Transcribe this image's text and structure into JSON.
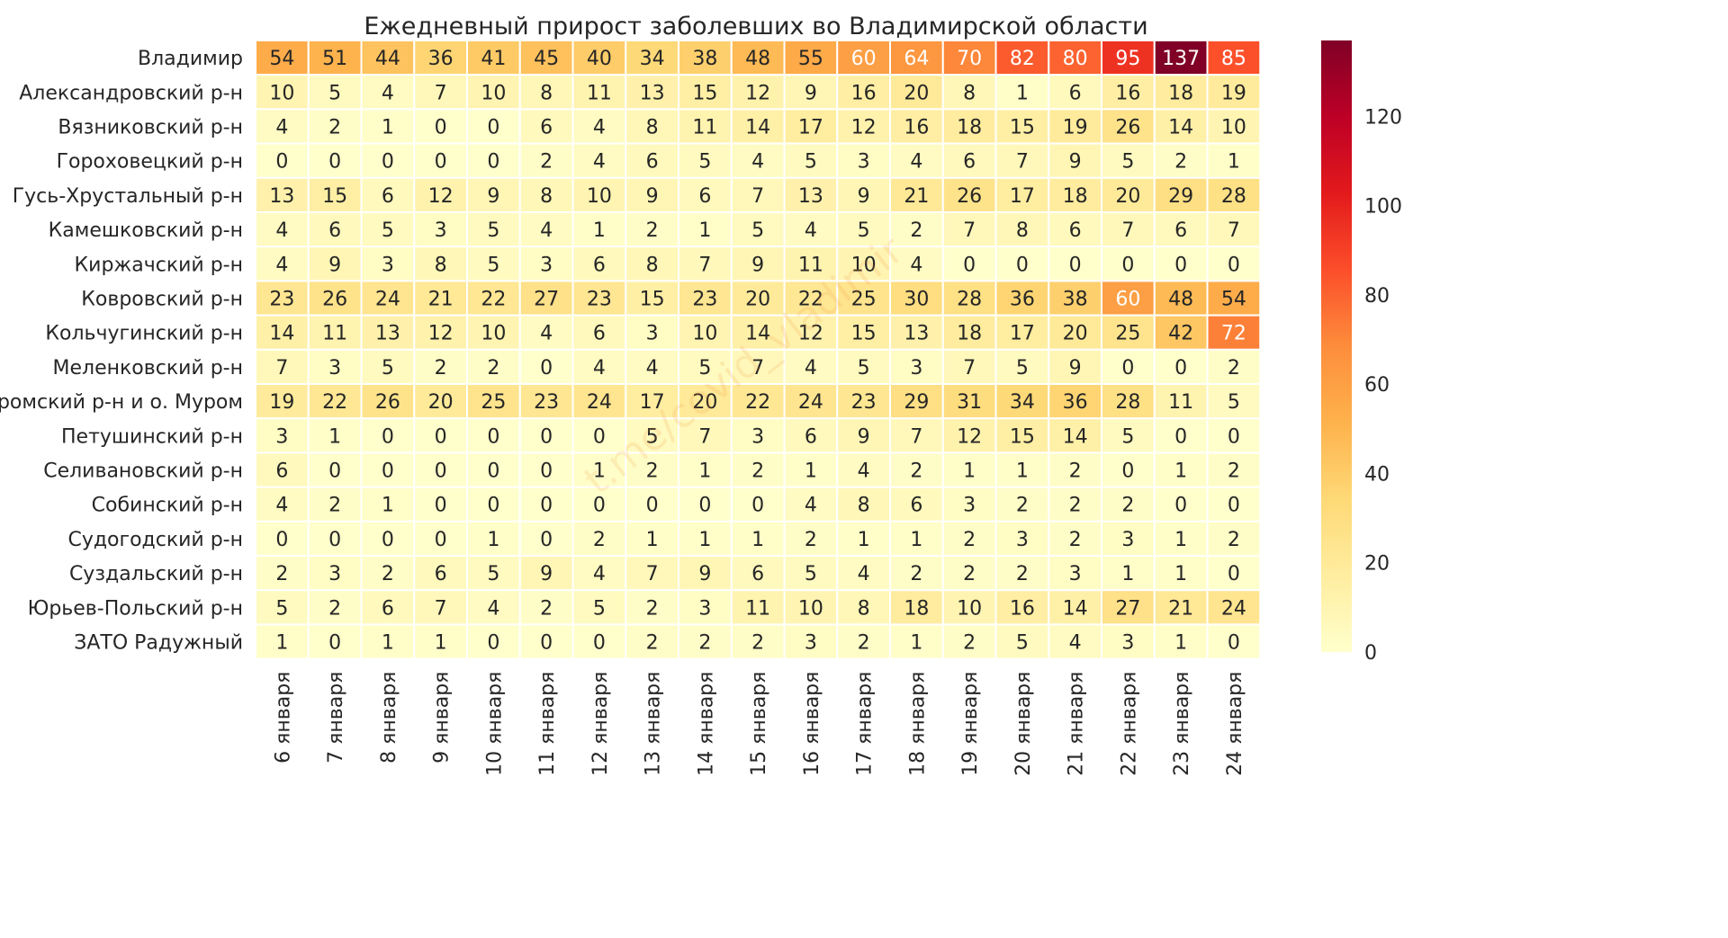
{
  "chart_data": {
    "type": "heatmap",
    "title": "Ежедневный прирост заболевших во Владимирской области",
    "xlabel": "",
    "ylabel": "",
    "columns": [
      "6 января",
      "7 января",
      "8 января",
      "9 января",
      "10 января",
      "11 января",
      "12 января",
      "13 января",
      "14 января",
      "15 января",
      "16 января",
      "17 января",
      "18 января",
      "19 января",
      "20 января",
      "21 января",
      "22 января",
      "23 января",
      "24 января"
    ],
    "rows": [
      "Владимир",
      "Александровский р-н",
      "Вязниковский р-н",
      "Гороховецкий р-н",
      "Гусь-Хрустальный р-н",
      "Камешковский р-н",
      "Киржачский р-н",
      "Ковровский р-н",
      "Кольчугинский р-н",
      "Меленковский р-н",
      "Муромский р-н и о. Муром",
      "Петушинский р-н",
      "Селивановский р-н",
      "Собинский р-н",
      "Судогодский р-н",
      "Суздальский р-н",
      "Юрьев-Польский р-н",
      "ЗАТО Радужный"
    ],
    "values": [
      [
        54,
        51,
        44,
        36,
        41,
        45,
        40,
        34,
        38,
        48,
        55,
        60,
        64,
        70,
        82,
        80,
        95,
        137,
        85
      ],
      [
        10,
        5,
        4,
        7,
        10,
        8,
        11,
        13,
        15,
        12,
        9,
        16,
        20,
        8,
        1,
        6,
        16,
        18,
        19
      ],
      [
        4,
        2,
        1,
        0,
        0,
        6,
        4,
        8,
        11,
        14,
        17,
        12,
        16,
        18,
        15,
        19,
        26,
        14,
        10
      ],
      [
        0,
        0,
        0,
        0,
        0,
        2,
        4,
        6,
        5,
        4,
        5,
        3,
        4,
        6,
        7,
        9,
        5,
        2,
        1
      ],
      [
        13,
        15,
        6,
        12,
        9,
        8,
        10,
        9,
        6,
        7,
        13,
        9,
        21,
        26,
        17,
        18,
        20,
        29,
        28
      ],
      [
        4,
        6,
        5,
        3,
        5,
        4,
        1,
        2,
        1,
        5,
        4,
        5,
        2,
        7,
        8,
        6,
        7,
        6,
        7
      ],
      [
        4,
        9,
        3,
        8,
        5,
        3,
        6,
        8,
        7,
        9,
        11,
        10,
        4,
        0,
        0,
        0,
        0,
        0,
        0
      ],
      [
        23,
        26,
        24,
        21,
        22,
        27,
        23,
        15,
        23,
        20,
        22,
        25,
        30,
        28,
        36,
        38,
        60,
        48,
        54
      ],
      [
        14,
        11,
        13,
        12,
        10,
        4,
        6,
        3,
        10,
        14,
        12,
        15,
        13,
        18,
        17,
        20,
        25,
        42,
        72
      ],
      [
        7,
        3,
        5,
        2,
        2,
        0,
        4,
        4,
        5,
        7,
        4,
        5,
        3,
        7,
        5,
        9,
        0,
        0,
        2
      ],
      [
        19,
        22,
        26,
        20,
        25,
        23,
        24,
        17,
        20,
        22,
        24,
        23,
        29,
        31,
        34,
        36,
        28,
        11,
        5
      ],
      [
        3,
        1,
        0,
        0,
        0,
        0,
        0,
        5,
        7,
        3,
        6,
        9,
        7,
        12,
        15,
        14,
        5,
        0,
        0
      ],
      [
        6,
        0,
        0,
        0,
        0,
        0,
        1,
        2,
        1,
        2,
        1,
        4,
        2,
        1,
        1,
        2,
        0,
        1,
        2
      ],
      [
        4,
        2,
        1,
        0,
        0,
        0,
        0,
        0,
        0,
        0,
        4,
        8,
        6,
        3,
        2,
        2,
        2,
        0,
        0
      ],
      [
        0,
        0,
        0,
        0,
        1,
        0,
        2,
        1,
        1,
        1,
        2,
        1,
        1,
        2,
        3,
        2,
        3,
        1,
        2
      ],
      [
        2,
        3,
        2,
        6,
        5,
        9,
        4,
        7,
        9,
        6,
        5,
        4,
        2,
        2,
        2,
        3,
        1,
        1,
        0
      ],
      [
        5,
        2,
        6,
        7,
        4,
        2,
        5,
        2,
        3,
        11,
        10,
        8,
        18,
        10,
        16,
        14,
        27,
        21,
        24
      ],
      [
        1,
        0,
        1,
        1,
        0,
        0,
        0,
        2,
        2,
        2,
        3,
        2,
        1,
        2,
        5,
        4,
        3,
        1,
        0
      ]
    ],
    "color_range": [
      0,
      137
    ],
    "colorbar_ticks": [
      0,
      20,
      40,
      60,
      80,
      100,
      120
    ],
    "colormap": "YlOrRd",
    "colormap_stops": [
      "#ffffcc",
      "#ffeda0",
      "#fed976",
      "#feb24c",
      "#fd8d3c",
      "#fc4e2a",
      "#e31a1c",
      "#bd0026",
      "#800026"
    ],
    "watermark": "t.me/covid_vladimir"
  }
}
